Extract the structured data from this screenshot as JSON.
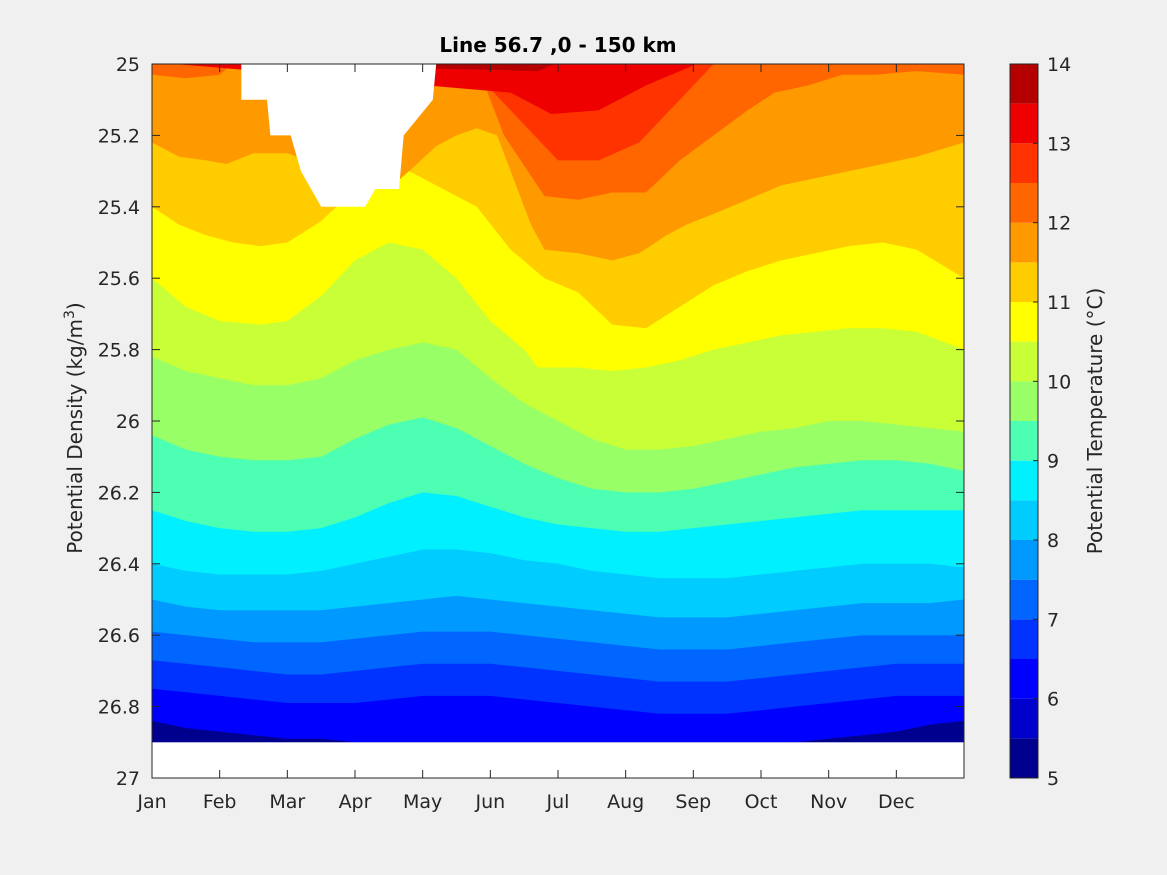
{
  "chart_data": {
    "type": "heatmap",
    "subtype": "filled-contour",
    "title": "Line 56.7 ,0 - 150 km",
    "ylabel_text": "Potential Density (kg/m",
    "ylabel_sup": "3",
    "ylabel_close": ")",
    "colorbar_label": "Potential Temperature (°C)",
    "x_ticks": [
      "Jan",
      "Feb",
      "Mar",
      "Apr",
      "May",
      "Jun",
      "Jul",
      "Aug",
      "Sep",
      "Oct",
      "Nov",
      "Dec"
    ],
    "y_ticks": [
      "25",
      "25.2",
      "25.4",
      "25.6",
      "25.8",
      "26",
      "26.2",
      "26.4",
      "26.6",
      "26.8",
      "27"
    ],
    "y_tick_values": [
      25,
      25.2,
      25.4,
      25.6,
      25.8,
      26,
      26.2,
      26.4,
      26.6,
      26.8,
      27
    ],
    "ylim": [
      25,
      27
    ],
    "y_reversed": true,
    "xlim_months": [
      0,
      12
    ],
    "clim": [
      5,
      14
    ],
    "colorbar_ticks": [
      "5",
      "6",
      "7",
      "8",
      "9",
      "10",
      "11",
      "12",
      "13",
      "14"
    ],
    "contour_levels": [
      5,
      5.5,
      6,
      6.5,
      7,
      7.5,
      8,
      8.5,
      9,
      9.5,
      10,
      10.5,
      11,
      11.5,
      12,
      12.5,
      13,
      13.5,
      14
    ],
    "level_colors": [
      "#00008f",
      "#0000cd",
      "#0000ff",
      "#0033ff",
      "#0066ff",
      "#0099ff",
      "#00ccff",
      "#00f0ff",
      "#4dffb2",
      "#99ff66",
      "#c8ff37",
      "#ffff00",
      "#ffcc00",
      "#ff9900",
      "#ff6600",
      "#ff3300",
      "#ee0000",
      "#b50000"
    ],
    "lines": [
      {
        "level": 13.5,
        "x": [
          5.7,
          6.2,
          6.8,
          7.3,
          8.1
        ],
        "y": [
          25.02,
          24.98,
          25,
          24.98,
          24.95
        ]
      },
      {
        "level": 13.0,
        "x": [
          5.3,
          5.9,
          6.6,
          7.3,
          8.3
        ],
        "y": [
          25.08,
          25.14,
          25.13,
          25.06,
          24.98
        ]
      },
      {
        "level": 12.5,
        "x": [
          4.9,
          5.4,
          6.0,
          6.6,
          7.2,
          7.8,
          8.4
        ],
        "y": [
          25.05,
          25.15,
          25.27,
          25.27,
          25.22,
          25.1,
          24.98
        ]
      },
      {
        "level": 12.0,
        "x": [
          0,
          0.5,
          1.0,
          1.3,
          2.0,
          2.5,
          3.0,
          3.5,
          4.3,
          4.8,
          5.2,
          5.8,
          6.3,
          6.8,
          7.3,
          7.8,
          8.3,
          8.8,
          9.2,
          9.7,
          10.2,
          10.7,
          11.3,
          12
        ],
        "y": [
          25.03,
          25.04,
          25.03,
          24.98,
          25.0,
          25.0,
          25.0,
          25.0,
          25.0,
          25.0,
          25.2,
          25.37,
          25.38,
          25.36,
          25.36,
          25.27,
          25.2,
          25.13,
          25.08,
          25.06,
          25.03,
          25.03,
          25.02,
          25.03
        ]
      },
      {
        "level": 11.5,
        "x": [
          0,
          0.4,
          0.8,
          1.1,
          1.5,
          2.0,
          2.6,
          3.0,
          3.5,
          3.8,
          4.2,
          4.5,
          4.8,
          5.1,
          5.6,
          5.8,
          6.3,
          6.8,
          7.2,
          7.6,
          7.9,
          8.3,
          8.8,
          9.3,
          9.8,
          10.3,
          10.8,
          11.3,
          12
        ],
        "y": [
          25.22,
          25.26,
          25.27,
          25.28,
          25.25,
          25.25,
          25.29,
          25.34,
          25.35,
          25.3,
          25.23,
          25.2,
          25.18,
          25.2,
          25.45,
          25.52,
          25.53,
          25.55,
          25.53,
          25.48,
          25.45,
          25.42,
          25.38,
          25.34,
          25.32,
          25.3,
          25.28,
          25.26,
          25.22
        ]
      },
      {
        "level": 11.0,
        "x": [
          0,
          0.4,
          0.8,
          1.2,
          1.6,
          2.0,
          2.5,
          3.0,
          3.5,
          3.8,
          4.3,
          4.8,
          5.3,
          5.8,
          6.3,
          6.8,
          7.3,
          7.8,
          8.3,
          8.8,
          9.3,
          9.8,
          10.3,
          10.8,
          11.3,
          12
        ],
        "y": [
          25.4,
          25.45,
          25.48,
          25.5,
          25.51,
          25.5,
          25.44,
          25.35,
          25.3,
          25.3,
          25.35,
          25.4,
          25.52,
          25.6,
          25.64,
          25.73,
          25.74,
          25.68,
          25.62,
          25.58,
          25.55,
          25.53,
          25.51,
          25.5,
          25.52,
          25.6
        ]
      },
      {
        "level": 10.5,
        "x": [
          0,
          0.5,
          1.0,
          1.6,
          2.0,
          2.5,
          3.0,
          3.5,
          4.0,
          4.5,
          5.0,
          5.5,
          5.7,
          6.3,
          6.8,
          7.3,
          7.8,
          8.3,
          8.8,
          9.3,
          9.8,
          10.3,
          10.8,
          11.3,
          12
        ],
        "y": [
          25.6,
          25.68,
          25.72,
          25.73,
          25.72,
          25.65,
          25.55,
          25.5,
          25.52,
          25.6,
          25.72,
          25.8,
          25.85,
          25.85,
          25.86,
          25.85,
          25.83,
          25.8,
          25.78,
          25.76,
          25.75,
          25.74,
          25.74,
          25.75,
          25.8
        ]
      },
      {
        "level": 10.0,
        "x": [
          0,
          0.5,
          1.0,
          1.5,
          2.0,
          2.5,
          3.0,
          3.5,
          4.0,
          4.5,
          5.0,
          5.5,
          6.0,
          6.5,
          7.0,
          7.5,
          8.0,
          8.5,
          9.0,
          9.5,
          10.0,
          10.5,
          11.0,
          11.5,
          12
        ],
        "y": [
          25.82,
          25.86,
          25.88,
          25.9,
          25.9,
          25.88,
          25.83,
          25.8,
          25.78,
          25.8,
          25.88,
          25.95,
          26.0,
          26.05,
          26.08,
          26.08,
          26.07,
          26.05,
          26.03,
          26.02,
          26.0,
          26.0,
          26.01,
          26.02,
          26.03
        ]
      },
      {
        "level": 9.5,
        "x": [
          0,
          0.5,
          1.0,
          1.5,
          2.0,
          2.5,
          3.0,
          3.5,
          4.0,
          4.5,
          5.0,
          5.5,
          6.0,
          6.5,
          7.0,
          7.5,
          8.0,
          8.5,
          9.0,
          9.5,
          10.0,
          10.5,
          11.0,
          11.5,
          12
        ],
        "y": [
          26.04,
          26.08,
          26.1,
          26.11,
          26.11,
          26.1,
          26.05,
          26.01,
          25.99,
          26.02,
          26.07,
          26.12,
          26.16,
          26.19,
          26.2,
          26.2,
          26.19,
          26.17,
          26.15,
          26.13,
          26.12,
          26.11,
          26.11,
          26.12,
          26.14
        ]
      },
      {
        "level": 9.0,
        "x": [
          0,
          0.5,
          1.0,
          1.5,
          2.0,
          2.5,
          3.0,
          3.5,
          4.0,
          4.5,
          5.0,
          5.5,
          6.0,
          6.5,
          7.0,
          7.5,
          8.0,
          8.5,
          9.0,
          9.5,
          10.0,
          10.5,
          11.0,
          11.5,
          12
        ],
        "y": [
          26.25,
          26.28,
          26.3,
          26.31,
          26.31,
          26.3,
          26.27,
          26.23,
          26.2,
          26.21,
          26.24,
          26.27,
          26.29,
          26.3,
          26.31,
          26.31,
          26.3,
          26.29,
          26.28,
          26.27,
          26.26,
          26.25,
          26.25,
          26.25,
          26.25
        ]
      },
      {
        "level": 8.5,
        "x": [
          0,
          0.5,
          1.0,
          1.5,
          2.0,
          2.5,
          3.0,
          3.5,
          4.0,
          4.5,
          5.0,
          5.5,
          6.0,
          6.5,
          7.0,
          7.5,
          8.0,
          8.5,
          9.0,
          9.5,
          10.0,
          10.5,
          11.0,
          11.5,
          12
        ],
        "y": [
          26.4,
          26.42,
          26.43,
          26.43,
          26.43,
          26.42,
          26.4,
          26.38,
          26.36,
          26.36,
          26.37,
          26.39,
          26.4,
          26.42,
          26.43,
          26.44,
          26.44,
          26.44,
          26.43,
          26.42,
          26.41,
          26.4,
          26.4,
          26.4,
          26.41
        ]
      },
      {
        "level": 8.0,
        "x": [
          0,
          0.5,
          1.0,
          1.5,
          2.0,
          2.5,
          3.0,
          3.5,
          4.0,
          4.5,
          5.0,
          5.5,
          6.0,
          6.5,
          7.0,
          7.5,
          8.0,
          8.5,
          9.0,
          9.5,
          10.0,
          10.5,
          11.0,
          11.5,
          12
        ],
        "y": [
          26.5,
          26.52,
          26.53,
          26.53,
          26.53,
          26.53,
          26.52,
          26.51,
          26.5,
          26.49,
          26.5,
          26.51,
          26.52,
          26.53,
          26.54,
          26.55,
          26.55,
          26.55,
          26.54,
          26.53,
          26.52,
          26.51,
          26.51,
          26.51,
          26.5
        ]
      },
      {
        "level": 7.5,
        "x": [
          0,
          0.5,
          1.0,
          1.5,
          2.0,
          2.5,
          3.0,
          3.5,
          4.0,
          4.5,
          5.0,
          5.5,
          6.0,
          6.5,
          7.0,
          7.5,
          8.0,
          8.5,
          9.0,
          9.5,
          10.0,
          10.5,
          11.0,
          11.5,
          12
        ],
        "y": [
          26.59,
          26.6,
          26.61,
          26.62,
          26.62,
          26.62,
          26.61,
          26.6,
          26.59,
          26.59,
          26.59,
          26.6,
          26.61,
          26.62,
          26.63,
          26.64,
          26.64,
          26.64,
          26.63,
          26.62,
          26.61,
          26.6,
          26.6,
          26.6,
          26.6
        ]
      },
      {
        "level": 7.0,
        "x": [
          0,
          0.5,
          1.0,
          1.5,
          2.0,
          2.5,
          3.0,
          3.5,
          4.0,
          4.5,
          5.0,
          5.5,
          6.0,
          6.5,
          7.0,
          7.5,
          8.0,
          8.5,
          9.0,
          9.5,
          10.0,
          10.5,
          11.0,
          11.5,
          12
        ],
        "y": [
          26.67,
          26.68,
          26.69,
          26.7,
          26.71,
          26.71,
          26.7,
          26.69,
          26.68,
          26.68,
          26.68,
          26.69,
          26.7,
          26.71,
          26.72,
          26.73,
          26.73,
          26.73,
          26.72,
          26.71,
          26.7,
          26.69,
          26.68,
          26.68,
          26.68
        ]
      },
      {
        "level": 6.5,
        "x": [
          0,
          0.5,
          1.0,
          1.5,
          2.0,
          2.5,
          3.0,
          3.5,
          4.0,
          4.5,
          5.0,
          5.5,
          6.0,
          6.5,
          7.0,
          7.5,
          8.0,
          8.5,
          9.0,
          9.5,
          10.0,
          10.5,
          11.0,
          11.5,
          12
        ],
        "y": [
          26.75,
          26.76,
          26.77,
          26.78,
          26.79,
          26.79,
          26.79,
          26.78,
          26.77,
          26.77,
          26.77,
          26.78,
          26.79,
          26.8,
          26.81,
          26.82,
          26.82,
          26.82,
          26.81,
          26.8,
          26.79,
          26.78,
          26.77,
          26.77,
          26.77
        ]
      },
      {
        "level": 6.0,
        "x": [
          0,
          0.5,
          1.0,
          1.5,
          2.0,
          2.5,
          3.0,
          3.5,
          4.0,
          4.5,
          5.0,
          5.5,
          6.0,
          6.5,
          7.0,
          7.5,
          8.0,
          8.5,
          9.0,
          9.5,
          10.0,
          10.5,
          11.0,
          11.5,
          12
        ],
        "y": [
          26.84,
          26.86,
          26.87,
          26.88,
          26.89,
          26.89,
          26.9,
          26.9,
          26.9,
          26.9,
          26.9,
          26.9,
          26.9,
          26.9,
          26.9,
          26.9,
          26.9,
          26.9,
          26.9,
          26.9,
          26.89,
          26.88,
          26.87,
          26.85,
          26.84
        ]
      }
    ],
    "mask_bottom": 26.9,
    "mask_region": {
      "x": [
        1.32,
        2.85,
        4.0,
        4.2,
        4.15,
        3.72,
        3.65,
        3.3,
        3.15,
        2.5,
        2.2,
        2.05,
        1.75,
        1.7,
        1.32
      ],
      "y": [
        25.0,
        25.0,
        25.0,
        25.0,
        25.1,
        25.2,
        25.35,
        25.35,
        25.4,
        25.4,
        25.3,
        25.2,
        25.2,
        25.1,
        25.1
      ]
    },
    "background_level": 5.0
  }
}
